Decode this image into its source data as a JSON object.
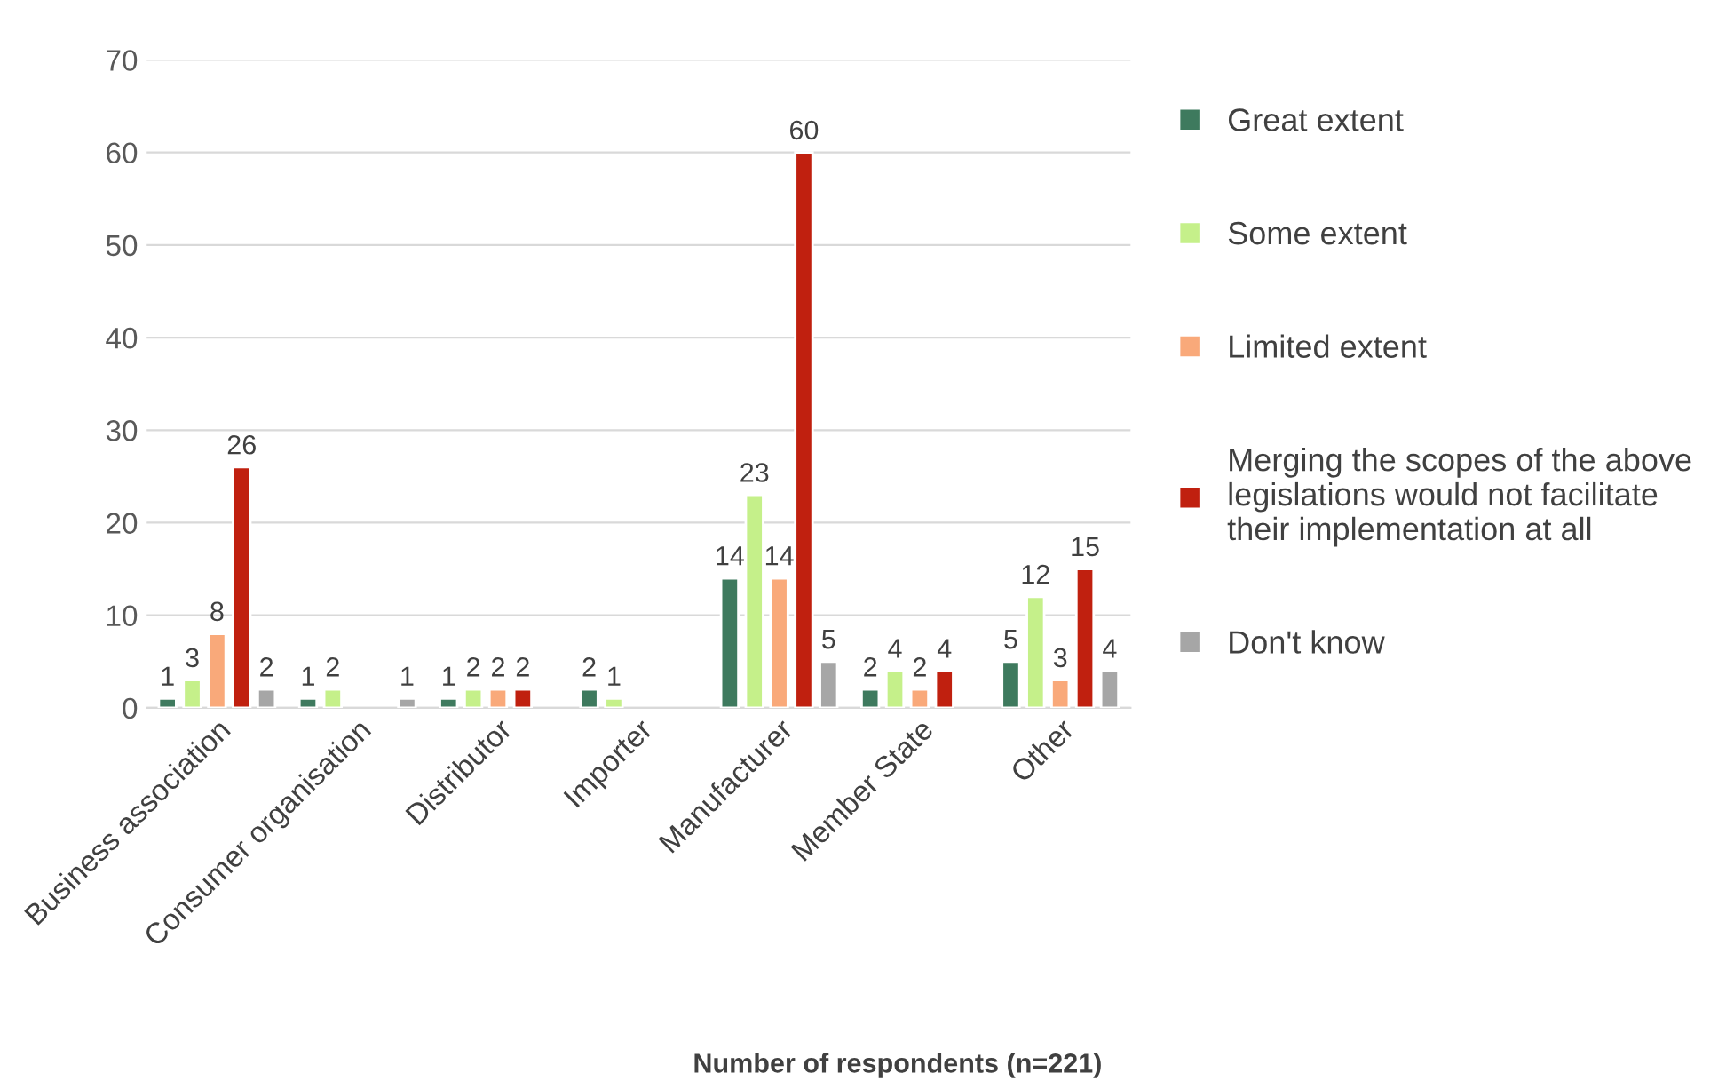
{
  "chart_data": {
    "type": "bar",
    "xlabel": "Number of respondents (n=221)",
    "categories": [
      "Business association",
      "Consumer organisation",
      "Distributor",
      "Importer",
      "Manufacturer",
      "Member State",
      "Other"
    ],
    "series": [
      {
        "name": "Great extent",
        "color": "#3e7a5e",
        "values": [
          1,
          1,
          1,
          2,
          14,
          2,
          5
        ]
      },
      {
        "name": "Some extent",
        "color": "#c5f08a",
        "values": [
          3,
          2,
          2,
          1,
          23,
          4,
          12
        ]
      },
      {
        "name": "Limited extent",
        "color": "#f9a97a",
        "values": [
          8,
          null,
          2,
          null,
          14,
          2,
          3
        ]
      },
      {
        "name": "Merging the scopes of the above legislations would not facilitate their implementation at all",
        "color": "#c0200f",
        "values": [
          26,
          null,
          2,
          null,
          60,
          4,
          15
        ]
      },
      {
        "name": "Don't know",
        "color": "#a6a6a6",
        "values": [
          2,
          1,
          null,
          null,
          5,
          null,
          4
        ]
      }
    ],
    "ylim": [
      0,
      70
    ],
    "yticks": [
      0,
      10,
      20,
      30,
      40,
      50,
      60,
      70
    ],
    "grid": "y",
    "legend": "right",
    "data_labels": true
  }
}
